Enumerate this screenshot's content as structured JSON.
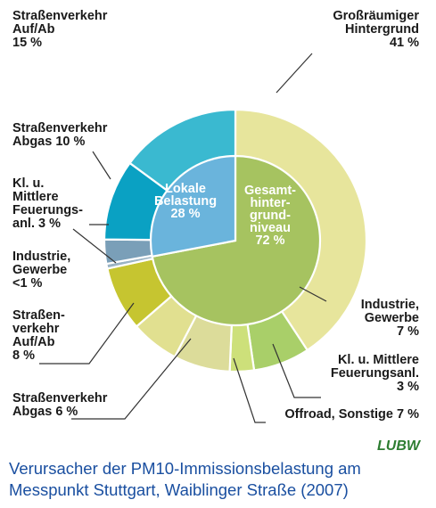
{
  "chart_data": {
    "type": "pie",
    "inner_ring": [
      {
        "key": "lokal",
        "label_lines": [
          "Lokale",
          "Belastung",
          "28 %"
        ],
        "value": 28,
        "color": "#6ab4dc"
      },
      {
        "key": "hintergrund",
        "label_lines": [
          "Gesamt-",
          "hinter-",
          "grund-",
          "niveau",
          "72 %"
        ],
        "value": 72,
        "color": "#a6c360"
      }
    ],
    "outer_ring": [
      {
        "key": "grossraeumig",
        "label_lines": [
          "Großräumiger",
          "Hintergrund",
          "41 %"
        ],
        "value": 41,
        "color": "#e7e59c"
      },
      {
        "key": "industrie_h",
        "label_lines": [
          "Industrie,",
          "Gewerbe",
          "7 %"
        ],
        "value": 7,
        "color": "#a9cf69"
      },
      {
        "key": "kl_feuerung_h",
        "label_lines": [
          "Kl. u. Mittlere",
          "Feuerungsanl.",
          "3 %"
        ],
        "value": 3,
        "color": "#cde07a"
      },
      {
        "key": "offroad",
        "label_lines": [
          "Offroad, Sonstige 7 %"
        ],
        "value": 7,
        "color": "#dcdc9a"
      },
      {
        "key": "abgas_h",
        "label_lines": [
          "Straßenverkehr",
          "Abgas 6 %"
        ],
        "value": 6,
        "color": "#e1e090"
      },
      {
        "key": "aufab_h",
        "label_lines": [
          "Straßen-",
          "verkehr",
          "Auf/Ab",
          "8 %"
        ],
        "value": 8,
        "color": "#c6c530"
      },
      {
        "key": "industrie_l",
        "label_lines": [
          "Industrie,",
          "Gewerbe",
          "<1 %"
        ],
        "value": 0.6,
        "color": "#9ab3c4"
      },
      {
        "key": "kl_feuerung_l",
        "label_lines": [
          "Kl. u.",
          "Mittlere",
          "Feuerungs-",
          "anl. 3 %"
        ],
        "value": 3,
        "color": "#7a9fb8"
      },
      {
        "key": "abgas_l",
        "label_lines": [
          "Straßenverkehr",
          "Abgas 10 %"
        ],
        "value": 10,
        "color": "#0aa1c3"
      },
      {
        "key": "aufab_l",
        "label_lines": [
          "Straßenverkehr",
          "Auf/Ab",
          "15 %"
        ],
        "value": 15,
        "color": "#3ab9d0"
      }
    ]
  },
  "caption_lines": [
    "Verursacher der PM10-Immissionsbelastung am",
    "Messpunkt Stuttgart, Waiblinger Straße (2007)"
  ],
  "logo_text": "LUBW"
}
